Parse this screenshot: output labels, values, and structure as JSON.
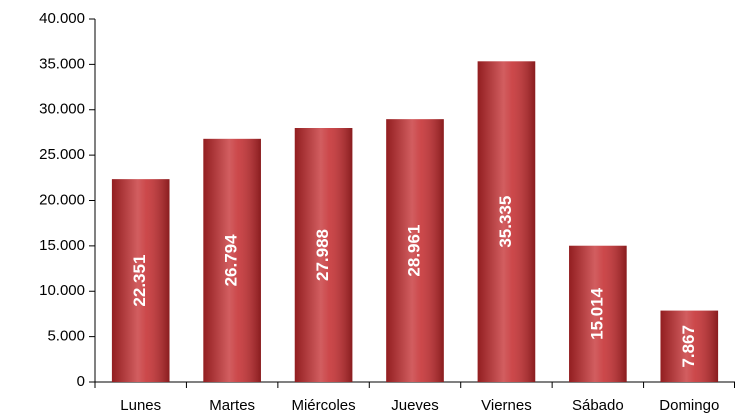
{
  "chart_data": {
    "type": "bar",
    "categories": [
      "Lunes",
      "Martes",
      "Miércoles",
      "Jueves",
      "Viernes",
      "Sábado",
      "Domingo"
    ],
    "values": [
      22351,
      26794,
      27988,
      28961,
      35335,
      15014,
      7867
    ],
    "value_labels": [
      "22.351",
      "26.794",
      "27.988",
      "28.961",
      "35.335",
      "15.014",
      "7.867"
    ],
    "color": "#c3282b",
    "ylim": [
      0,
      40000
    ],
    "yticks": [
      0,
      {
        "value": 5000,
        "label": "5.000"
      },
      {
        "value": 10000,
        "label": "10.000"
      },
      {
        "value": 15000,
        "label": "15.000"
      },
      {
        "value": 20000,
        "label": "20.000"
      },
      {
        "value": 25000,
        "label": "25.000"
      },
      {
        "value": 30000,
        "label": "30.000"
      },
      {
        "value": 35000,
        "label": "35.000"
      },
      {
        "value": 40000,
        "label": "40.000"
      }
    ],
    "grid": false
  }
}
